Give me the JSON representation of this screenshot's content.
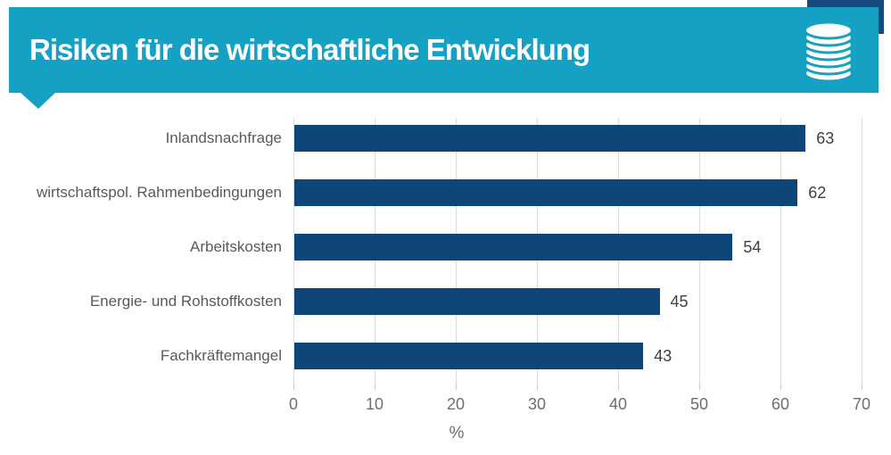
{
  "header": {
    "title": "Risiken für die wirtschaftliche Entwicklung",
    "icon": "coin-stack-icon"
  },
  "colors": {
    "banner_teal": "#14a1c4",
    "corner_accent_navy": "#164a7d",
    "bar_navy": "#0e4679",
    "gridline_grey": "#dcdcdc",
    "category_text": "#595959",
    "tick_text": "#6e6e6e",
    "value_text": "#404040",
    "title_text": "#ffffff"
  },
  "chart_data": {
    "type": "bar",
    "orientation": "horizontal",
    "title": "Risiken für die wirtschaftliche Entwicklung",
    "categories": [
      "Inlandsnachfrage",
      "wirtschaftspol. Rahmenbedingungen",
      "Arbeitskosten",
      "Energie- und Rohstoffkosten",
      "Fachkräftemangel"
    ],
    "values": [
      63,
      62,
      54,
      45,
      43
    ],
    "value_labels": [
      "63",
      "62",
      "54",
      "45",
      "43"
    ],
    "xlabel": "%",
    "xlim": [
      0,
      70
    ],
    "xticks": [
      0,
      10,
      20,
      30,
      40,
      50,
      60,
      70
    ],
    "grid": true,
    "legend": false,
    "bar_color": "#0e4679"
  }
}
